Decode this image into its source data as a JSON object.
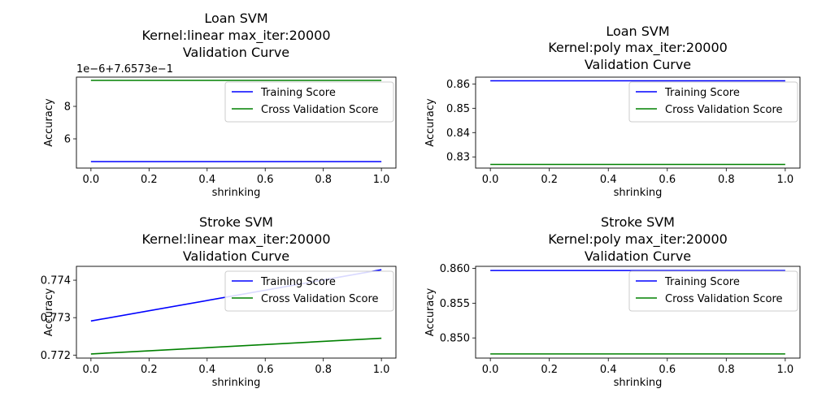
{
  "chart_data": [
    {
      "type": "line",
      "title": [
        "Loan SVM",
        "Kernel:linear max_iter:20000",
        "Validation Curve"
      ],
      "xlabel": "shrinking",
      "ylabel": "Accuracy",
      "offset_text": "1e−6+7.6573e−1",
      "xlim": [
        -0.05,
        1.05
      ],
      "ylim": [
        4.2,
        9.8
      ],
      "xticks": [
        0.0,
        0.2,
        0.4,
        0.6,
        0.8,
        1.0
      ],
      "xtick_labels": [
        "0.0",
        "0.2",
        "0.4",
        "0.6",
        "0.8",
        "1.0"
      ],
      "yticks": [
        6,
        8
      ],
      "ytick_labels": [
        "6",
        "8"
      ],
      "legend_position": "upper-right",
      "series": [
        {
          "name": "Training Score",
          "color": "#0000ff",
          "x": [
            0,
            1
          ],
          "y": [
            4.6,
            4.6
          ]
        },
        {
          "name": "Cross Validation Score",
          "color": "#008000",
          "x": [
            0,
            1
          ],
          "y": [
            9.6,
            9.6
          ]
        }
      ]
    },
    {
      "type": "line",
      "title": [
        "Loan SVM",
        "Kernel:poly max_iter:20000",
        "Validation Curve"
      ],
      "xlabel": "shrinking",
      "ylabel": "Accuracy",
      "offset_text": "",
      "xlim": [
        -0.05,
        1.05
      ],
      "ylim": [
        0.8254,
        0.8628
      ],
      "xticks": [
        0.0,
        0.2,
        0.4,
        0.6,
        0.8,
        1.0
      ],
      "xtick_labels": [
        "0.0",
        "0.2",
        "0.4",
        "0.6",
        "0.8",
        "1.0"
      ],
      "yticks": [
        0.83,
        0.84,
        0.85,
        0.86
      ],
      "ytick_labels": [
        "0.83",
        "0.84",
        "0.85",
        "0.86"
      ],
      "legend_position": "upper-right",
      "series": [
        {
          "name": "Training Score",
          "color": "#0000ff",
          "x": [
            0,
            1
          ],
          "y": [
            0.8613,
            0.8613
          ]
        },
        {
          "name": "Cross Validation Score",
          "color": "#008000",
          "x": [
            0,
            1
          ],
          "y": [
            0.8269,
            0.8269
          ]
        }
      ]
    },
    {
      "type": "line",
      "title": [
        "Stroke SVM",
        "Kernel:linear max_iter:20000",
        "Validation Curve"
      ],
      "xlabel": "shrinking",
      "ylabel": "Accuracy",
      "offset_text": "",
      "xlim": [
        -0.05,
        1.05
      ],
      "ylim": [
        0.77192,
        0.77437
      ],
      "xticks": [
        0.0,
        0.2,
        0.4,
        0.6,
        0.8,
        1.0
      ],
      "xtick_labels": [
        "0.0",
        "0.2",
        "0.4",
        "0.6",
        "0.8",
        "1.0"
      ],
      "yticks": [
        0.772,
        0.773,
        0.774
      ],
      "ytick_labels": [
        "0.772",
        "0.773",
        "0.774"
      ],
      "legend_position": "upper-right",
      "series": [
        {
          "name": "Training Score",
          "color": "#0000ff",
          "x": [
            0,
            1
          ],
          "y": [
            0.77291,
            0.77428
          ]
        },
        {
          "name": "Cross Validation Score",
          "color": "#008000",
          "x": [
            0,
            1
          ],
          "y": [
            0.77203,
            0.77245
          ]
        }
      ]
    },
    {
      "type": "line",
      "title": [
        "Stroke SVM",
        "Kernel:poly max_iter:20000",
        "Validation Curve"
      ],
      "xlabel": "shrinking",
      "ylabel": "Accuracy",
      "offset_text": "",
      "xlim": [
        -0.05,
        1.05
      ],
      "ylim": [
        0.8471,
        0.8603
      ],
      "xticks": [
        0.0,
        0.2,
        0.4,
        0.6,
        0.8,
        1.0
      ],
      "xtick_labels": [
        "0.0",
        "0.2",
        "0.4",
        "0.6",
        "0.8",
        "1.0"
      ],
      "yticks": [
        0.85,
        0.855,
        0.86
      ],
      "ytick_labels": [
        "0.850",
        "0.855",
        "0.860"
      ],
      "legend_position": "upper-right",
      "series": [
        {
          "name": "Training Score",
          "color": "#0000ff",
          "x": [
            0,
            1
          ],
          "y": [
            0.8597,
            0.8597
          ]
        },
        {
          "name": "Cross Validation Score",
          "color": "#008000",
          "x": [
            0,
            1
          ],
          "y": [
            0.8477,
            0.8477
          ]
        }
      ]
    }
  ]
}
